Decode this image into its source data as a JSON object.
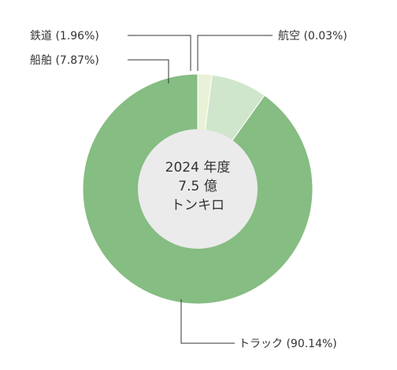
{
  "chart_data": {
    "type": "pie",
    "donut": true,
    "center_text": [
      "2024 年度",
      "7.5 億",
      "トンキロ"
    ],
    "slices": [
      {
        "name": "トラック",
        "value": 90.14,
        "label": "トラック (90.14%)",
        "color": "#86bd82"
      },
      {
        "name": "船舶",
        "value": 7.87,
        "label": "船舶 (7.87%)",
        "color": "#d0e6cc"
      },
      {
        "name": "鉄道",
        "value": 1.96,
        "label": "鉄道 (1.96%)",
        "color": "#e9f2d6"
      },
      {
        "name": "航空",
        "value": 0.03,
        "label": "航空 (0.03%)",
        "color": "#f4f8e8"
      }
    ],
    "slice_border_color": "#ffffff",
    "center_fill": "#ebebeb",
    "legend": "none",
    "grid": false
  }
}
